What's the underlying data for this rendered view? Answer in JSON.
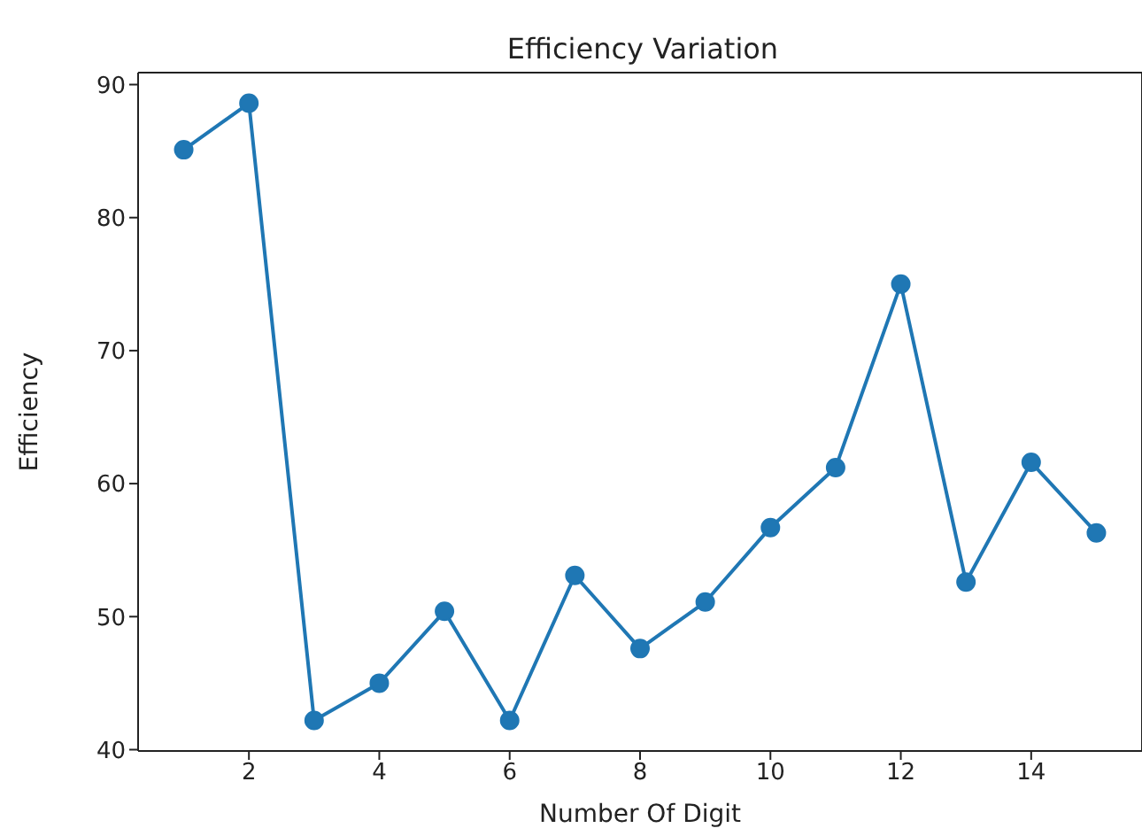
{
  "chart_data": {
    "type": "line",
    "title": "Efficiency Variation",
    "xlabel": "Number Of Digit",
    "ylabel": "Efficiency",
    "x": [
      1,
      2,
      3,
      4,
      5,
      6,
      7,
      8,
      9,
      10,
      11,
      12,
      13,
      14,
      15
    ],
    "series": [
      {
        "color": "#1f77b4",
        "values": [
          85.1,
          88.6,
          42.2,
          45.0,
          50.4,
          42.2,
          53.1,
          47.6,
          51.1,
          56.7,
          61.2,
          75.0,
          52.6,
          61.6,
          56.3
        ]
      }
    ],
    "xlim": [
      0.3,
      15.7
    ],
    "xticks": [
      2,
      4,
      6,
      8,
      10,
      12,
      14
    ],
    "ylim": [
      39.9,
      90.9
    ],
    "yticks": [
      40,
      50,
      60,
      70,
      80,
      90
    ],
    "grid": false,
    "legend": false,
    "marker": "circle",
    "line_style": "solid"
  }
}
